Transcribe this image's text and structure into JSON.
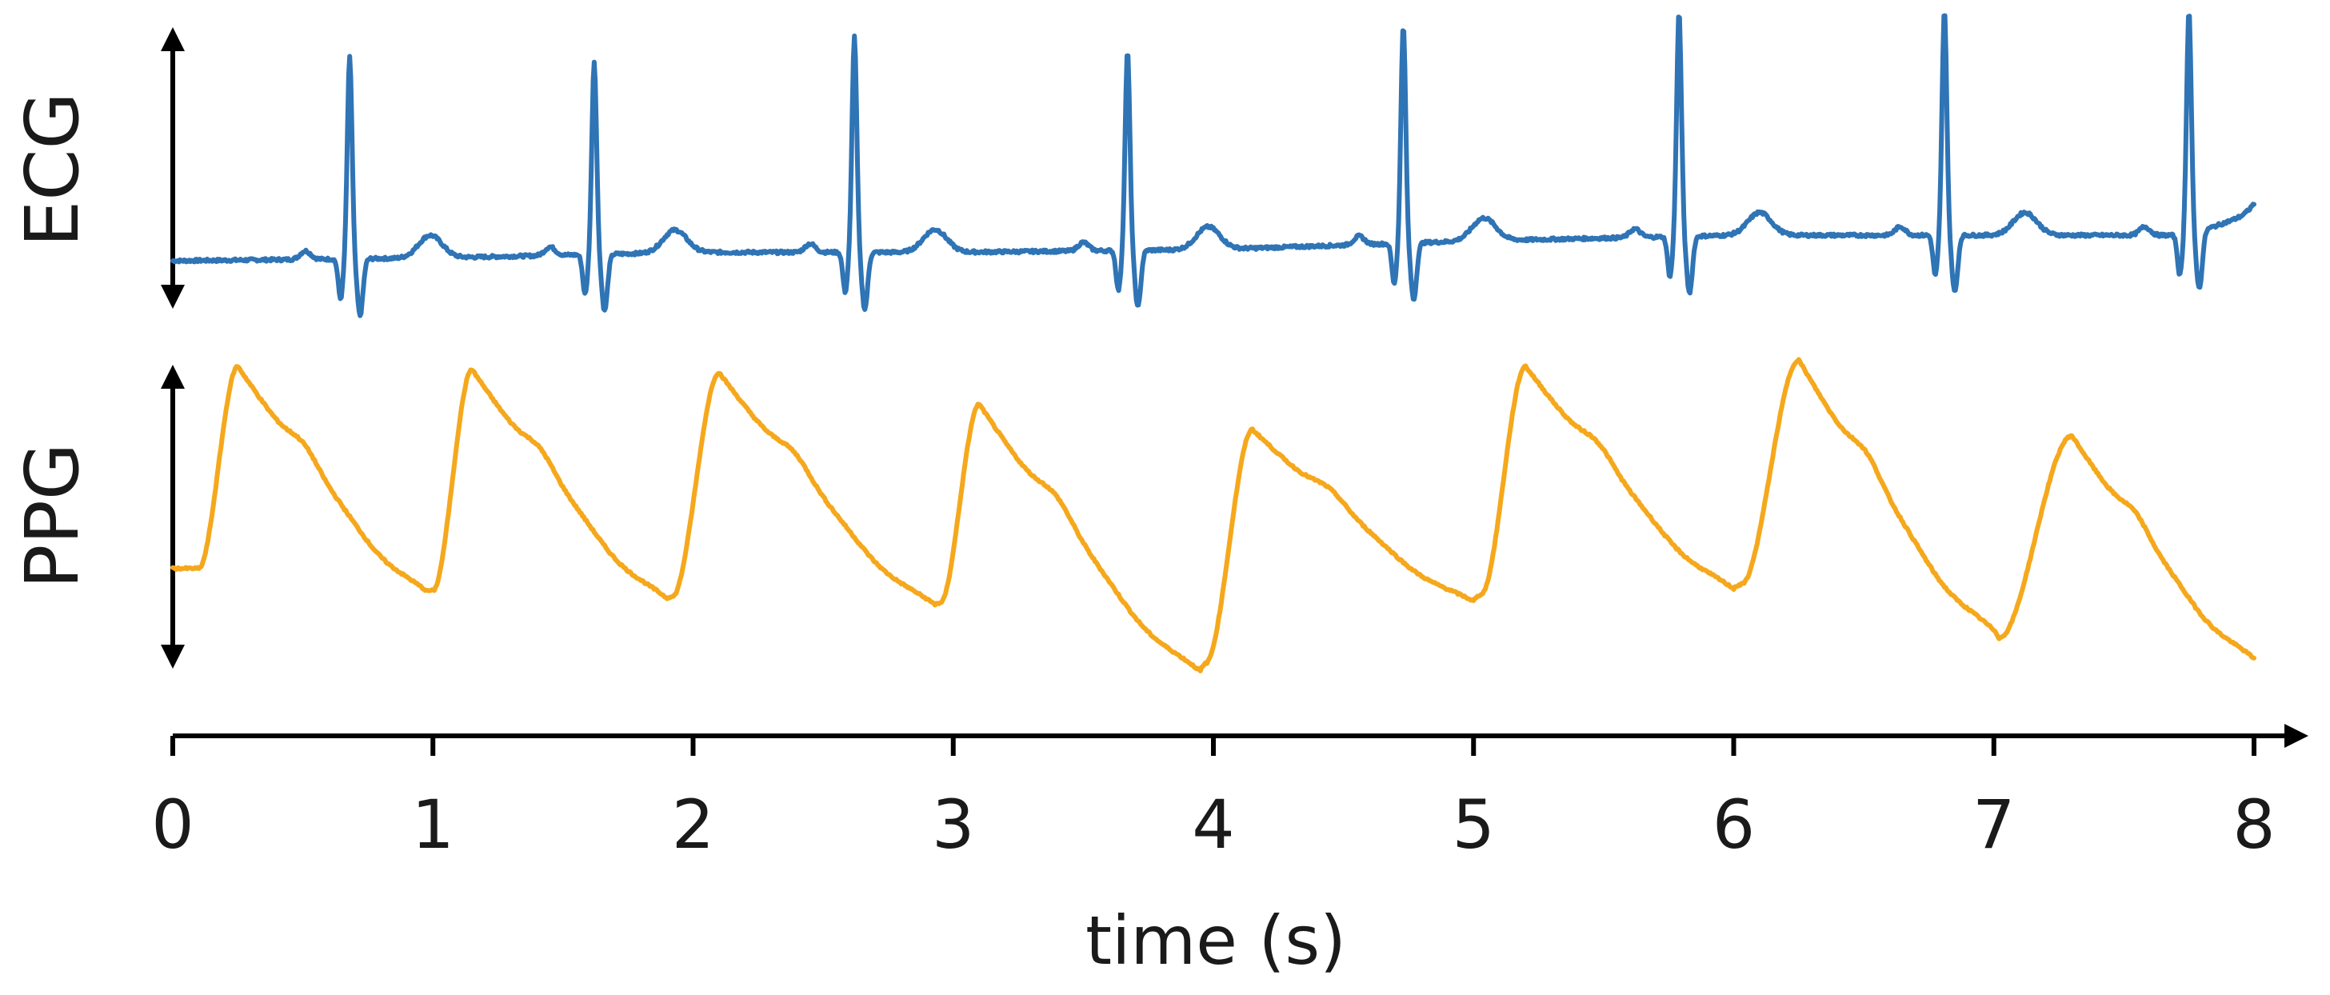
{
  "chart_data": {
    "type": "line",
    "xlabel": "time (s)",
    "xlim": [
      0,
      8
    ],
    "x_ticks": [
      "0",
      "1",
      "2",
      "3",
      "4",
      "5",
      "6",
      "7",
      "8"
    ],
    "grid": false,
    "legend": "none",
    "series": [
      {
        "name": "ECG",
        "color": "#2f74b5",
        "y_range": [
          0,
          1
        ],
        "beats_r_peak_times": [
          0.68,
          1.62,
          2.62,
          3.67,
          4.73,
          5.79,
          6.81,
          7.75
        ],
        "beats_r_peak_amplitudes": [
          0.91,
          0.88,
          0.96,
          0.9,
          0.97,
          0.99,
          0.99,
          0.99
        ],
        "baseline": [
          [
            0.0,
            0.18
          ],
          [
            1.0,
            0.19
          ],
          [
            2.0,
            0.21
          ],
          [
            3.0,
            0.21
          ],
          [
            4.0,
            0.22
          ],
          [
            5.0,
            0.25
          ],
          [
            6.0,
            0.27
          ],
          [
            7.0,
            0.27
          ],
          [
            7.75,
            0.27
          ],
          [
            8.0,
            0.35
          ]
        ]
      },
      {
        "name": "PPG",
        "color": "#f5a81c",
        "y_range": [
          0,
          1
        ],
        "peaks": [
          {
            "foot_t": 0.1,
            "foot_y": 0.34,
            "peak_t": 0.25,
            "peak_y": 0.98,
            "end_t": 0.98,
            "end_y": 0.27
          },
          {
            "foot_t": 1.0,
            "foot_y": 0.27,
            "peak_t": 1.15,
            "peak_y": 0.97,
            "end_t": 1.9,
            "end_y": 0.25
          },
          {
            "foot_t": 1.92,
            "foot_y": 0.25,
            "peak_t": 2.1,
            "peak_y": 0.96,
            "end_t": 2.93,
            "end_y": 0.23
          },
          {
            "foot_t": 2.95,
            "foot_y": 0.23,
            "peak_t": 3.1,
            "peak_y": 0.86,
            "end_t": 3.95,
            "end_y": 0.02
          },
          {
            "foot_t": 3.97,
            "foot_y": 0.04,
            "peak_t": 4.15,
            "peak_y": 0.78,
            "end_t": 5.0,
            "end_y": 0.24
          },
          {
            "foot_t": 5.03,
            "foot_y": 0.26,
            "peak_t": 5.2,
            "peak_y": 0.98,
            "end_t": 6.0,
            "end_y": 0.28
          },
          {
            "foot_t": 6.03,
            "foot_y": 0.29,
            "peak_t": 6.25,
            "peak_y": 1.0,
            "end_t": 7.0,
            "end_y": 0.15
          },
          {
            "foot_t": 7.02,
            "foot_y": 0.12,
            "peak_t": 7.3,
            "peak_y": 0.76,
            "end_t": 8.0,
            "end_y": 0.06
          }
        ]
      }
    ]
  }
}
